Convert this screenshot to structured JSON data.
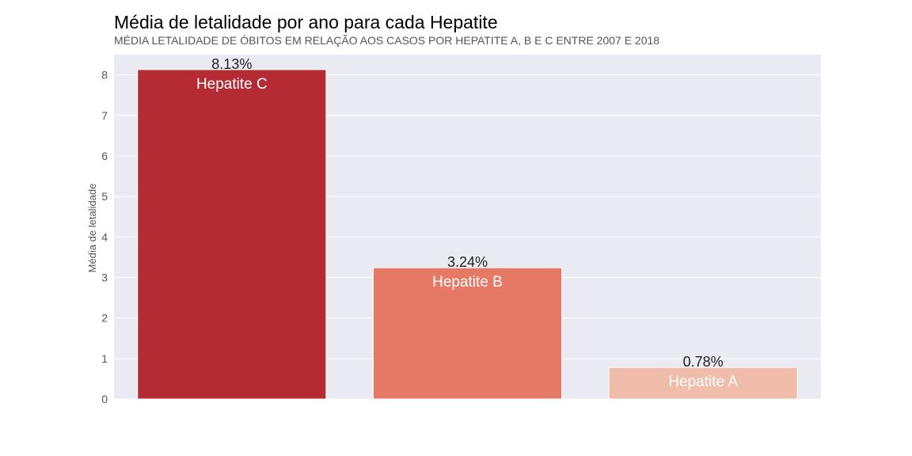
{
  "chart_data": {
    "type": "bar",
    "title": "Média de letalidade por ano para cada Hepatite",
    "subtitle": "MÉDIA LETALIDADE DE ÓBITOS EM RELAÇÃO AOS CASOS POR HEPATITE A, B E C ENTRE 2007 E 2018",
    "xlabel": "",
    "ylabel": "Média de letalidade",
    "categories": [
      "Hepatite C",
      "Hepatite B",
      "Hepatite A"
    ],
    "values": [
      8.13,
      3.24,
      0.78
    ],
    "value_labels": [
      "8.13%",
      "3.24%",
      "0.78%"
    ],
    "bar_colors": [
      "#b42b33",
      "#e57965",
      "#f0bdaa"
    ],
    "yticks": [
      0,
      1,
      2,
      3,
      4,
      5,
      6,
      7,
      8
    ],
    "ylim": [
      0,
      8.5
    ],
    "grid": true,
    "xticks_visible": false,
    "background_color": "#eaeaf2",
    "legend": "none"
  }
}
